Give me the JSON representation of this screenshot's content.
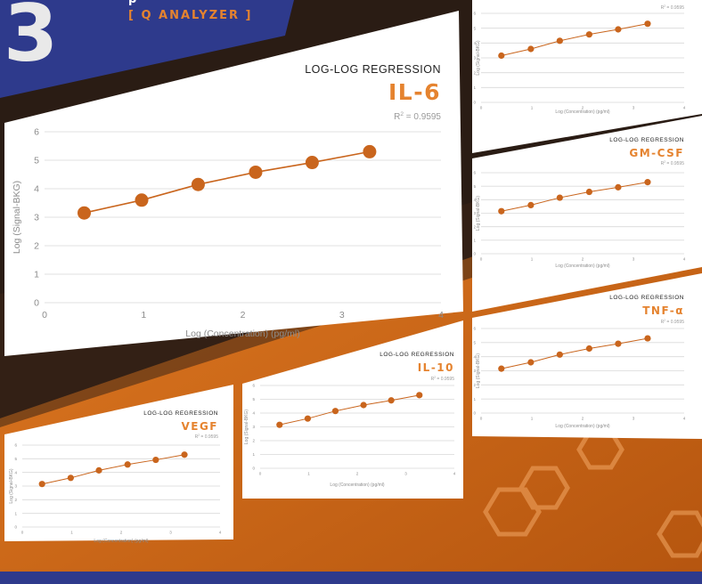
{
  "brand": {
    "step_number": "3",
    "partial_heading": "p",
    "tagline": "[ Q ANALYZER ]"
  },
  "colors": {
    "accent_orange": "#e5832f",
    "marker_orange": "#c9651d",
    "brand_blue": "#2e3a8c",
    "background_brown": "#2a1c14"
  },
  "chart_data": [
    {
      "type": "line",
      "id": "il6",
      "heading": "LOG-LOG REGRESSION",
      "title": "IL-6",
      "r2_label": "R",
      "r2_exp": "2",
      "r2_value": " = 0.9595",
      "xlabel": "Log (Concentration) (pg/ml)",
      "ylabel": "Log (Signal-BKG)",
      "xlim": [
        0,
        4
      ],
      "ylim": [
        0,
        6
      ],
      "x_ticks": [
        0,
        1,
        2,
        3,
        4
      ],
      "y_ticks": [
        0,
        1,
        2,
        3,
        4,
        5,
        6
      ],
      "grid": true,
      "legend": "none",
      "x": [
        0.4,
        0.98,
        1.55,
        2.13,
        2.7,
        3.28
      ],
      "y": [
        3.15,
        3.6,
        4.15,
        4.58,
        4.92,
        5.3
      ]
    },
    {
      "type": "line",
      "id": "top-right",
      "heading": "",
      "title": "",
      "r2_label": "R",
      "r2_exp": "2",
      "r2_value": " = 0.9595",
      "xlabel": "Log (Concentration) (pg/ml)",
      "ylabel": "Log (Signal-BKG)",
      "xlim": [
        0,
        4
      ],
      "ylim": [
        0,
        6
      ],
      "x_ticks": [
        0,
        1,
        2,
        3,
        4
      ],
      "y_ticks": [
        0,
        1,
        2,
        3,
        4,
        5,
        6
      ],
      "grid": true,
      "legend": "none",
      "x": [
        0.4,
        0.98,
        1.55,
        2.13,
        2.7,
        3.28
      ],
      "y": [
        3.15,
        3.6,
        4.15,
        4.58,
        4.92,
        5.3
      ]
    },
    {
      "type": "line",
      "id": "gmcsf",
      "heading": "LOG-LOG REGRESSION",
      "title": "GM-CSF",
      "r2_label": "R",
      "r2_exp": "2",
      "r2_value": " = 0.9595",
      "xlabel": "Log (Concentration) (pg/ml)",
      "ylabel": "Log (Signal-BKG)",
      "xlim": [
        0,
        4
      ],
      "ylim": [
        0,
        6
      ],
      "x_ticks": [
        0,
        1,
        2,
        3,
        4
      ],
      "y_ticks": [
        0,
        1,
        2,
        3,
        4,
        5,
        6
      ],
      "grid": true,
      "legend": "none",
      "x": [
        0.4,
        0.98,
        1.55,
        2.13,
        2.7,
        3.28
      ],
      "y": [
        3.15,
        3.6,
        4.15,
        4.58,
        4.92,
        5.3
      ]
    },
    {
      "type": "line",
      "id": "tnfa",
      "heading": "LOG-LOG REGRESSION",
      "title": "TNF-α",
      "r2_label": "R",
      "r2_exp": "2",
      "r2_value": " = 0.9595",
      "xlabel": "Log (Concentration) (pg/ml)",
      "ylabel": "Log (Signal-BKG)",
      "xlim": [
        0,
        4
      ],
      "ylim": [
        0,
        6
      ],
      "x_ticks": [
        0,
        1,
        2,
        3,
        4
      ],
      "y_ticks": [
        0,
        1,
        2,
        3,
        4,
        5,
        6
      ],
      "grid": true,
      "legend": "none",
      "x": [
        0.4,
        0.98,
        1.55,
        2.13,
        2.7,
        3.28
      ],
      "y": [
        3.15,
        3.6,
        4.15,
        4.58,
        4.92,
        5.3
      ]
    },
    {
      "type": "line",
      "id": "il10",
      "heading": "LOG-LOG REGRESSION",
      "title": "IL-10",
      "r2_label": "R",
      "r2_exp": "2",
      "r2_value": " = 0.9595",
      "xlabel": "Log (Concentration) (pg/ml)",
      "ylabel": "Log (Signal-BKG)",
      "xlim": [
        0,
        4
      ],
      "ylim": [
        0,
        6
      ],
      "x_ticks": [
        0,
        1,
        2,
        3,
        4
      ],
      "y_ticks": [
        0,
        1,
        2,
        3,
        4,
        5,
        6
      ],
      "grid": true,
      "legend": "none",
      "x": [
        0.4,
        0.98,
        1.55,
        2.13,
        2.7,
        3.28
      ],
      "y": [
        3.15,
        3.6,
        4.15,
        4.58,
        4.92,
        5.3
      ]
    },
    {
      "type": "line",
      "id": "vegf",
      "heading": "LOG-LOG REGRESSION",
      "title": "VEGF",
      "r2_label": "R",
      "r2_exp": "2",
      "r2_value": " = 0.9595",
      "xlabel": "Log (Concentration) (pg/ml)",
      "ylabel": "Log (Signal-BKG)",
      "xlim": [
        0,
        4
      ],
      "ylim": [
        0,
        6
      ],
      "x_ticks": [
        0,
        1,
        2,
        3,
        4
      ],
      "y_ticks": [
        0,
        1,
        2,
        3,
        4,
        5,
        6
      ],
      "grid": true,
      "legend": "none",
      "x": [
        0.4,
        0.98,
        1.55,
        2.13,
        2.7,
        3.28
      ],
      "y": [
        3.15,
        3.6,
        4.15,
        4.58,
        4.92,
        5.3
      ]
    }
  ]
}
